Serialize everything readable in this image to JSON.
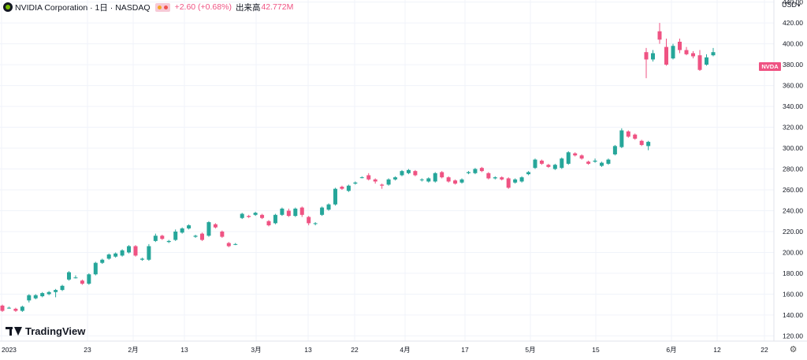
{
  "legend": {
    "symbol": "NVIDIA Corporation · 1日 · NASDAQ",
    "change": "+2.60 (+0.68%)",
    "volume_label": "出来高",
    "volume": "42.772M"
  },
  "axis": {
    "currency": "USD",
    "price_tag": "NVDA"
  },
  "brand": {
    "logo_text": "TradingView"
  },
  "icons": {
    "settings": "gear-icon",
    "logo": "nvidia-logo-icon",
    "chart_logo": "tradingview-logo-icon"
  },
  "colors": {
    "up": "#26a69a",
    "down": "#ef5383",
    "grid": "#f0f3fa",
    "text": "#131722"
  },
  "chart_data": {
    "type": "candlestick",
    "title": "NVIDIA Corporation · 1日 · NASDAQ",
    "ylim": [
      115,
      442
    ],
    "y_ticks": [
      "120.00",
      "140.00",
      "160.00",
      "180.00",
      "200.00",
      "220.00",
      "240.00",
      "260.00",
      "280.00",
      "300.00",
      "320.00",
      "340.00",
      "360.00",
      "380.00",
      "400.00",
      "420.00",
      "440.00"
    ],
    "x_labels": [
      "2023",
      "23",
      "2月",
      "13",
      "3月",
      "13",
      "22",
      "4月",
      "17",
      "5月",
      "15",
      "6月",
      "12",
      "22"
    ],
    "candles": [
      [
        149,
        144,
        150,
        143
      ],
      [
        147,
        147,
        148,
        146
      ],
      [
        146,
        144,
        147,
        143
      ],
      [
        144,
        148,
        149,
        143
      ],
      [
        154,
        159,
        160,
        152
      ],
      [
        156,
        159,
        160,
        155
      ],
      [
        158,
        161,
        162,
        157
      ],
      [
        160,
        162,
        163,
        159
      ],
      [
        162,
        164,
        165,
        157
      ],
      [
        164,
        168,
        169,
        163
      ],
      [
        174,
        181,
        182,
        173
      ],
      [
        176,
        176,
        178,
        175
      ],
      [
        173,
        170,
        174,
        169
      ],
      [
        170,
        179,
        180,
        169
      ],
      [
        179,
        190,
        191,
        178
      ],
      [
        190,
        193,
        194,
        189
      ],
      [
        194,
        198,
        199,
        193
      ],
      [
        196,
        199,
        200,
        195
      ],
      [
        197,
        202,
        203,
        196
      ],
      [
        200,
        206,
        207,
        199
      ],
      [
        206,
        197,
        207,
        196
      ],
      [
        193,
        194,
        195,
        192
      ],
      [
        193,
        206,
        208,
        192
      ],
      [
        211,
        216,
        218,
        210
      ],
      [
        216,
        213,
        217,
        212
      ],
      [
        210,
        211,
        212,
        209
      ],
      [
        212,
        220,
        222,
        211
      ],
      [
        219,
        223,
        224,
        218
      ],
      [
        223,
        226,
        227,
        222
      ],
      [
        215,
        216,
        217,
        214
      ],
      [
        218,
        212,
        219,
        211
      ],
      [
        216,
        229,
        230,
        215
      ],
      [
        227,
        224,
        228,
        223
      ],
      [
        220,
        215,
        221,
        214
      ],
      [
        209,
        206,
        210,
        205
      ],
      [
        208,
        208,
        209,
        207
      ],
      [
        233,
        237,
        238,
        232
      ],
      [
        235,
        234,
        236,
        233
      ],
      [
        236,
        238,
        239,
        235
      ],
      [
        236,
        233,
        237,
        232
      ],
      [
        230,
        226,
        231,
        225
      ],
      [
        228,
        236,
        237,
        227
      ],
      [
        236,
        242,
        243,
        235
      ],
      [
        240,
        235,
        242,
        234
      ],
      [
        235,
        242,
        243,
        234
      ],
      [
        243,
        236,
        244,
        234
      ],
      [
        234,
        228,
        235,
        226
      ],
      [
        228,
        228,
        229,
        226
      ],
      [
        236,
        243,
        244,
        235
      ],
      [
        241,
        246,
        247,
        240
      ],
      [
        246,
        261,
        262,
        245
      ],
      [
        263,
        261,
        264,
        260
      ],
      [
        259,
        264,
        265,
        258
      ],
      [
        266,
        267,
        268,
        265
      ],
      [
        272,
        272,
        273,
        271
      ],
      [
        274,
        270,
        276,
        269
      ],
      [
        270,
        268,
        271,
        266
      ],
      [
        265,
        264,
        266,
        261
      ],
      [
        265,
        270,
        271,
        264
      ],
      [
        270,
        272,
        273,
        269
      ],
      [
        274,
        278,
        279,
        273
      ],
      [
        276,
        279,
        280,
        275
      ],
      [
        278,
        274,
        279,
        273
      ],
      [
        270,
        270,
        271,
        268
      ],
      [
        268,
        271,
        272,
        267
      ],
      [
        268,
        276,
        277,
        267
      ],
      [
        277,
        272,
        278,
        271
      ],
      [
        272,
        268,
        273,
        267
      ],
      [
        269,
        266,
        270,
        265
      ],
      [
        267,
        270,
        271,
        266
      ],
      [
        276,
        277,
        278,
        275
      ],
      [
        276,
        280,
        281,
        275
      ],
      [
        281,
        278,
        282,
        277
      ],
      [
        276,
        271,
        277,
        270
      ],
      [
        271,
        272,
        273,
        270
      ],
      [
        272,
        270,
        273,
        269
      ],
      [
        271,
        262,
        272,
        261
      ],
      [
        267,
        270,
        271,
        266
      ],
      [
        268,
        272,
        273,
        267
      ],
      [
        275,
        277,
        278,
        274
      ],
      [
        281,
        289,
        290,
        280
      ],
      [
        288,
        285,
        289,
        284
      ],
      [
        284,
        282,
        285,
        281
      ],
      [
        280,
        284,
        285,
        279
      ],
      [
        281,
        290,
        291,
        280
      ],
      [
        285,
        296,
        297,
        284
      ],
      [
        295,
        293,
        296,
        292
      ],
      [
        293,
        290,
        294,
        289
      ],
      [
        287,
        285,
        288,
        284
      ],
      [
        287,
        288,
        290,
        286
      ],
      [
        283,
        286,
        287,
        282
      ],
      [
        285,
        289,
        290,
        284
      ],
      [
        294,
        302,
        303,
        293
      ],
      [
        301,
        317,
        319,
        300
      ],
      [
        316,
        311,
        317,
        310
      ],
      [
        313,
        309,
        314,
        308
      ],
      [
        307,
        303,
        308,
        302
      ],
      [
        302,
        306,
        307,
        298
      ],
      [
        392,
        385,
        396,
        367
      ],
      [
        385,
        391,
        394,
        383
      ],
      [
        412,
        404,
        420,
        400
      ],
      [
        397,
        380,
        405,
        379
      ],
      [
        386,
        398,
        400,
        385
      ],
      [
        402,
        394,
        405,
        391
      ],
      [
        394,
        390,
        397,
        389
      ],
      [
        391,
        388,
        393,
        386
      ],
      [
        389,
        375,
        394,
        374
      ],
      [
        380,
        387,
        390,
        379
      ],
      [
        389,
        392,
        396,
        388
      ]
    ]
  }
}
